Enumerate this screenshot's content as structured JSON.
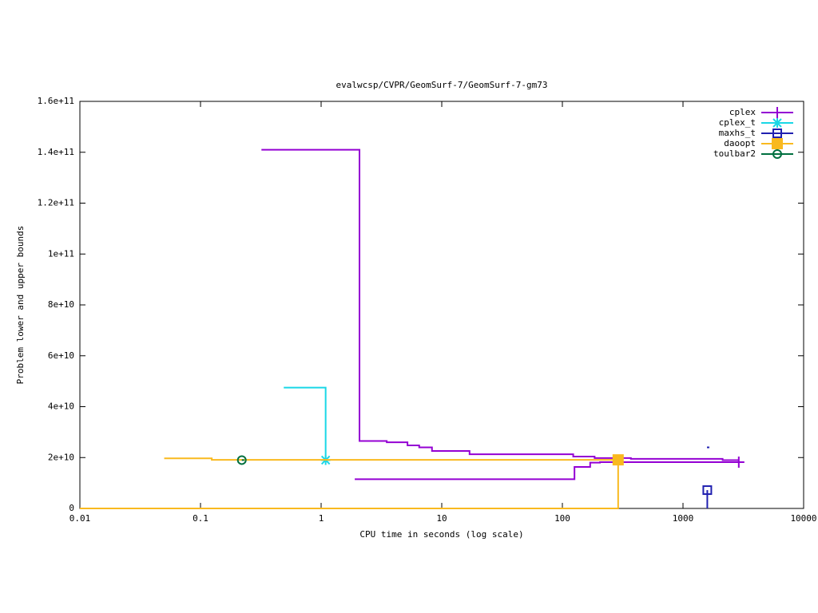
{
  "chart_data": {
    "type": "line",
    "title": "evalwcsp/CVPR/GeomSurf-7/GeomSurf-7-gm73",
    "xlabel": "CPU time in seconds (log scale)",
    "ylabel": "Problem lower and upper bounds",
    "xscale": "log",
    "xlim": [
      0.01,
      10000
    ],
    "xticks": [
      0.01,
      0.1,
      1,
      10,
      100,
      1000,
      10000
    ],
    "ylim": [
      0,
      160000000000
    ],
    "yticks": [
      0,
      {
        "value": 20000000000,
        "label": "2e+10"
      },
      {
        "value": 40000000000,
        "label": "4e+10"
      },
      {
        "value": 60000000000,
        "label": "6e+10"
      },
      {
        "value": 80000000000,
        "label": "8e+10"
      },
      {
        "value": 100000000000,
        "label": "1e+11"
      },
      {
        "value": 120000000000,
        "label": "1.2e+11"
      },
      {
        "value": 140000000000,
        "label": "1.4e+11"
      },
      {
        "value": 160000000000,
        "label": "1.6e+11"
      }
    ],
    "legend": "top-right",
    "series": [
      {
        "name": "cplex",
        "color": "#9400d3",
        "marker": "plus",
        "x": [
          0.32,
          2.08,
          2.08,
          3.5,
          3.5,
          5.2,
          5.2,
          6.5,
          6.5,
          8.3,
          8.3,
          17,
          17,
          123,
          123,
          185,
          185,
          370,
          370,
          2130,
          2130,
          2900,
          null,
          1.9,
          126,
          126,
          170,
          170,
          205,
          205,
          2900
        ],
        "values": [
          141000000000,
          141000000000,
          26500000000,
          26500000000,
          26000000000,
          26000000000,
          24800000000,
          24800000000,
          24000000000,
          24000000000,
          22600000000,
          22600000000,
          21300000000,
          21300000000,
          20400000000,
          20400000000,
          19800000000,
          19800000000,
          19500000000,
          19500000000,
          19000000000,
          19000000000,
          null,
          11500000000,
          11500000000,
          16300000000,
          16300000000,
          18000000000,
          18000000000,
          18200000000,
          18200000000
        ]
      },
      {
        "name": "cplex_t",
        "color": "#19d7e6",
        "marker": "star",
        "x": [
          0.49,
          1.09,
          1.09
        ],
        "values": [
          47500000000,
          47500000000,
          19000000000
        ]
      },
      {
        "name": "maxhs_t",
        "color": "#2020b0",
        "marker": "open-square",
        "x": [
          1580,
          null,
          1590,
          1590
        ],
        "values": [
          24000000000,
          null,
          0,
          7200000000
        ]
      },
      {
        "name": "daoopt",
        "color": "#f9b91f",
        "marker": "filled-square",
        "x": [
          0.05,
          0.124,
          0.124,
          290,
          null,
          0.01,
          290,
          290
        ],
        "values": [
          19700000000,
          19700000000,
          19100000000,
          19100000000,
          null,
          0,
          0,
          19100000000
        ]
      },
      {
        "name": "toulbar2",
        "color": "#006f3f",
        "marker": "circle",
        "x": [
          0.22
        ],
        "values": [
          19000000000
        ]
      }
    ]
  }
}
